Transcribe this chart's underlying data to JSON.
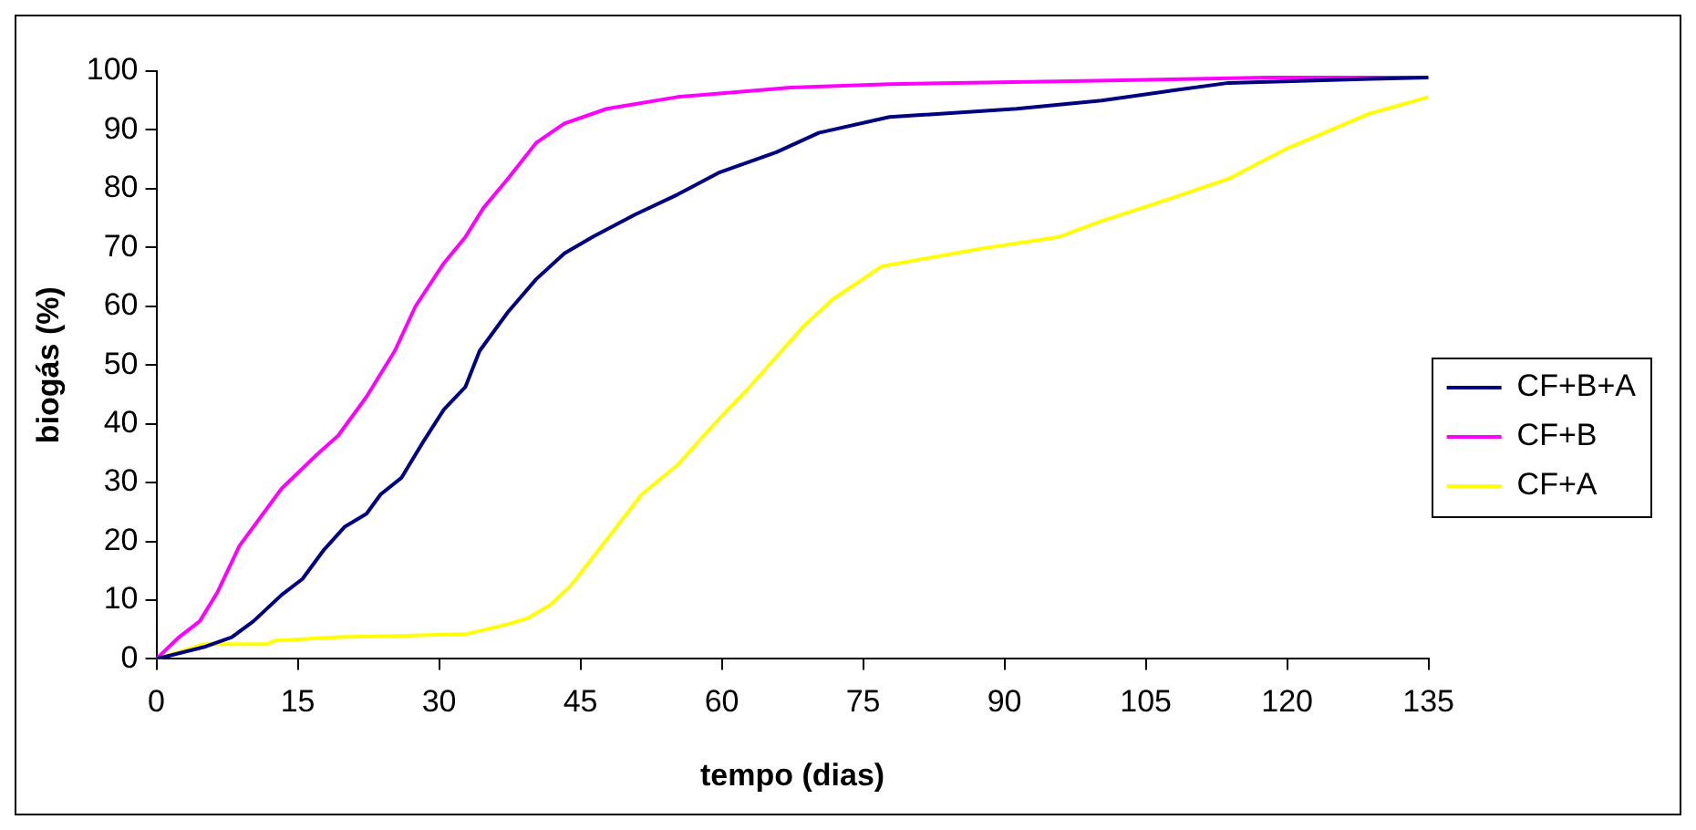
{
  "chart_data": {
    "type": "line",
    "xlabel": "tempo (dias)",
    "ylabel": "biogás (%)",
    "xlim": [
      0,
      135
    ],
    "xticks": [
      0,
      15,
      30,
      45,
      60,
      75,
      90,
      105,
      120,
      135
    ],
    "ylim": [
      0,
      100
    ],
    "yticks": [
      0,
      10,
      20,
      30,
      40,
      50,
      60,
      70,
      80,
      90,
      100
    ],
    "grid": false,
    "legend": "right",
    "marker": "none",
    "line_style": "solid",
    "series": [
      {
        "name": "CF+B+A",
        "color": "#000080",
        "x": [
          0,
          5,
          8,
          10.3,
          13.3,
          15.5,
          17.8,
          20,
          22.3,
          23.8,
          26,
          28.3,
          30.5,
          32.8,
          34.3,
          37.3,
          40.3,
          43.3,
          46.3,
          50.8,
          55.3,
          59.8,
          65.8,
          70.3,
          77.8,
          91.3,
          100.3,
          107.8,
          113.8,
          128.8,
          135
        ],
        "values": [
          0,
          2,
          3.7,
          6.4,
          10.9,
          13.6,
          18.6,
          22.5,
          24.7,
          28,
          30.8,
          36.9,
          42.4,
          46.3,
          52.4,
          59,
          64.6,
          69,
          71.8,
          75.6,
          79,
          82.8,
          86.2,
          89.5,
          92.2,
          93.6,
          95,
          96.7,
          98,
          98.7,
          98.9
        ]
      },
      {
        "name": "CF+B",
        "color": "#ff00ff",
        "x": [
          0,
          2.4,
          4.6,
          6.5,
          8.8,
          13.3,
          17,
          19.3,
          22.3,
          25.3,
          27.5,
          30.5,
          32.8,
          34.7,
          37.3,
          40.3,
          43.3,
          47.8,
          55.3,
          67.3,
          77.8,
          97,
          118,
          135
        ],
        "values": [
          0,
          3.7,
          6.4,
          11.4,
          19.2,
          29,
          34.7,
          38,
          44.6,
          52.4,
          60,
          67.3,
          71.8,
          76.7,
          81.7,
          87.8,
          91.1,
          93.6,
          95.6,
          97.2,
          97.8,
          98.3,
          98.9,
          98.9
        ]
      },
      {
        "name": "CF+A",
        "color": "#ffff00",
        "x": [
          0,
          5,
          11.8,
          12.5,
          19.3,
          25.3,
          32.8,
          37.3,
          39.5,
          41.8,
          44,
          47.8,
          51.5,
          55.3,
          59,
          62.8,
          68.8,
          71.8,
          77,
          80.8,
          87.5,
          95.8,
          100.3,
          107.8,
          113.8,
          119.8,
          128.8,
          135
        ],
        "values": [
          0,
          2.5,
          2.5,
          3.1,
          3.7,
          3.9,
          4.2,
          5.9,
          7,
          9.2,
          12.5,
          20.3,
          28,
          33,
          39.6,
          46,
          56.8,
          61.2,
          66.8,
          67.9,
          69.8,
          71.8,
          74.5,
          78.4,
          81.7,
          86.7,
          92.8,
          95.6
        ]
      }
    ]
  }
}
